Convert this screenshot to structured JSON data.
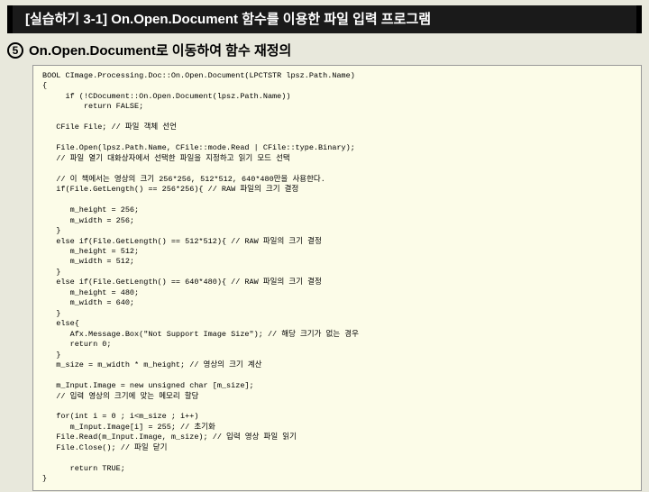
{
  "header": {
    "title": "[실습하기 3-1] On.Open.Document 함수를 이용한 파일 입력 프로그램"
  },
  "subheader": {
    "index": "5",
    "text": "On.Open.Document로 이동하여 함수 재정의"
  },
  "code": {
    "lines": [
      "BOOL CImage.Processing.Doc::On.Open.Document(LPCTSTR lpsz.Path.Name)",
      "{",
      "     if (!CDocument::On.Open.Document(lpsz.Path.Name))",
      "         return FALSE;",
      "",
      "   CFile File; // 파일 객체 선언",
      "",
      "   File.Open(lpsz.Path.Name, CFile::mode.Read | CFile::type.Binary);",
      "   // 파일 열기 대화상자에서 선택한 파일을 지정하고 읽기 모드 선택",
      "",
      "   // 이 책에서는 영상의 크기 256*256, 512*512, 640*480만을 사용한다.",
      "   if(File.GetLength() == 256*256){ // RAW 파일의 크기 결정",
      "",
      "      m_height = 256;",
      "      m_width = 256;",
      "   }",
      "   else if(File.GetLength() == 512*512){ // RAW 파일의 크기 결정",
      "      m_height = 512;",
      "      m_width = 512;",
      "   }",
      "   else if(File.GetLength() == 640*480){ // RAW 파일의 크기 결정",
      "      m_height = 480;",
      "      m_width = 640;",
      "   }",
      "   else{",
      "      Afx.Message.Box(\"Not Support Image Size\"); // 해당 크기가 없는 경우",
      "      return 0;",
      "   }",
      "   m_size = m_width * m_height; // 영상의 크기 계산",
      "",
      "   m_Input.Image = new unsigned char [m_size];",
      "   // 입력 영상의 크기에 맞는 메모리 할당",
      "",
      "   for(int i = 0 ; i<m_size ; i++)",
      "      m_Input.Image[i] = 255; // 초기화",
      "   File.Read(m_Input.Image, m_size); // 입력 영상 파일 읽기",
      "   File.Close(); // 파일 닫기",
      "",
      "      return TRUE;",
      "}"
    ]
  },
  "colors": {
    "page_bg": "#e8e8dc",
    "header_bg": "#1a1a1a",
    "header_fg": "#ffffff",
    "code_bg": "#fcfce8",
    "code_border": "#999999"
  }
}
